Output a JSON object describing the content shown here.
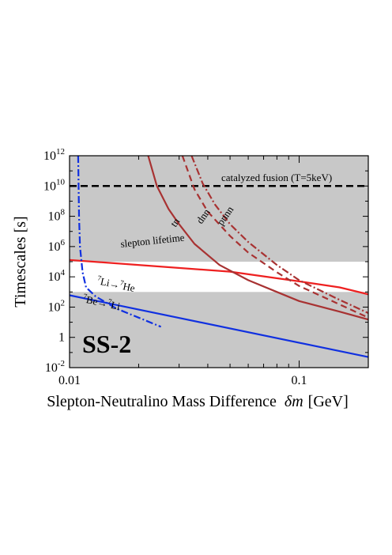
{
  "chart_data": {
    "type": "line",
    "xscale": "log",
    "yscale": "log",
    "xlim": [
      0.01,
      0.2
    ],
    "ylim": [
      0.01,
      1000000000000.0
    ],
    "xlabel_main": "Slepton-Neutralino Mass Difference",
    "xlabel_symbol": "δm",
    "xlabel_unit": "[GeV]",
    "ylabel": "Timescales [s]",
    "panel_label": "SS-2",
    "x_ticks": [
      {
        "value": 0.01,
        "label": "0.01"
      },
      {
        "value": 0.1,
        "label": "0.1"
      }
    ],
    "y_ticks": [
      {
        "value": 0.01,
        "base": "10",
        "exp": "-2"
      },
      {
        "value": 1,
        "base": "1",
        "exp": ""
      },
      {
        "value": 100.0,
        "base": "10",
        "exp": "2"
      },
      {
        "value": 10000.0,
        "base": "10",
        "exp": "4"
      },
      {
        "value": 1000000.0,
        "base": "10",
        "exp": "6"
      },
      {
        "value": 100000000.0,
        "base": "10",
        "exp": "8"
      },
      {
        "value": 10000000000.0,
        "base": "10",
        "exp": "10"
      },
      {
        "value": 1000000000000.0,
        "base": "10",
        "exp": "12"
      }
    ],
    "shaded_regions": [
      {
        "y_from": 0.01,
        "y_to": 1000.0,
        "color": "#c8c8c8"
      },
      {
        "y_from": 100000.0,
        "y_to": 1000000000000.0,
        "color": "#c8c8c8"
      }
    ],
    "series": [
      {
        "name": "catalyzed fusion (T=5keV)",
        "color": "#000000",
        "dash": "9,5",
        "width": 2.5,
        "x": [
          0.01,
          0.2
        ],
        "y": [
          10000000000.0,
          10000000000.0
        ]
      },
      {
        "name": "slepton lifetime",
        "color": "#ee2020",
        "dash": "",
        "width": 2.2,
        "x": [
          0.01,
          0.05,
          0.1,
          0.15,
          0.2
        ],
        "y": [
          130000.0,
          22000.0,
          5000.0,
          2000.0,
          700.0
        ]
      },
      {
        "name": "7Be→7Li",
        "color": "#1030e0",
        "dash": "",
        "width": 2.2,
        "x": [
          0.01,
          0.2
        ],
        "y": [
          600,
          0.05
        ]
      },
      {
        "name": "7Li→7He",
        "color": "#1030e0",
        "dash": "9,3,2,3",
        "width": 2.2,
        "x": [
          0.0109,
          0.011,
          0.0111,
          0.0114,
          0.0118,
          0.013,
          0.016,
          0.02,
          0.025
        ],
        "y": [
          1000000000000.0,
          100000000.0,
          1000000.0,
          20000.0,
          2000.0,
          500,
          80,
          20,
          5
        ]
      },
      {
        "name": "tn",
        "color": "#a83232",
        "dash": "",
        "width": 2.2,
        "x": [
          0.022,
          0.024,
          0.027,
          0.03,
          0.035,
          0.045,
          0.06,
          0.08,
          0.1,
          0.15,
          0.2
        ],
        "y": [
          1000000000000.0,
          10000000000.0,
          300000000.0,
          30000000.0,
          1500000.0,
          60000.0,
          6000.0,
          1000.0,
          250,
          50,
          15
        ]
      },
      {
        "name": "dnn",
        "color": "#a83232",
        "dash": "8,5",
        "width": 2.2,
        "x": [
          0.031,
          0.035,
          0.04,
          0.05,
          0.06,
          0.08,
          0.1,
          0.15,
          0.2
        ],
        "y": [
          1000000000000.0,
          6000000000.0,
          200000000.0,
          5000000.0,
          400000.0,
          20000.0,
          2500.0,
          150,
          20
        ]
      },
      {
        "name": "pnnn",
        "color": "#a83232",
        "dash": "9,3,2,3",
        "width": 2.2,
        "x": [
          0.034,
          0.038,
          0.043,
          0.05,
          0.06,
          0.08,
          0.1,
          0.15,
          0.2
        ],
        "y": [
          1000000000000.0,
          15000000000.0,
          600000000.0,
          30000000.0,
          2000000.0,
          60000.0,
          6000.0,
          300,
          40
        ]
      }
    ],
    "annotations": [
      {
        "text": "catalyzed fusion (T=5keV)"
      },
      {
        "text": "slepton lifetime"
      },
      {
        "text": "7Li→7He",
        "mass_a": "7",
        "sym_a": "Li→",
        "mass_b": "7",
        "sym_b": "He"
      },
      {
        "text": "7Be→7Li",
        "mass_a": "7",
        "sym_a": "Be→",
        "mass_b": "7",
        "sym_b": "Li"
      },
      {
        "text": "tn"
      },
      {
        "text": "dnn"
      },
      {
        "text": "pnnn"
      }
    ]
  }
}
